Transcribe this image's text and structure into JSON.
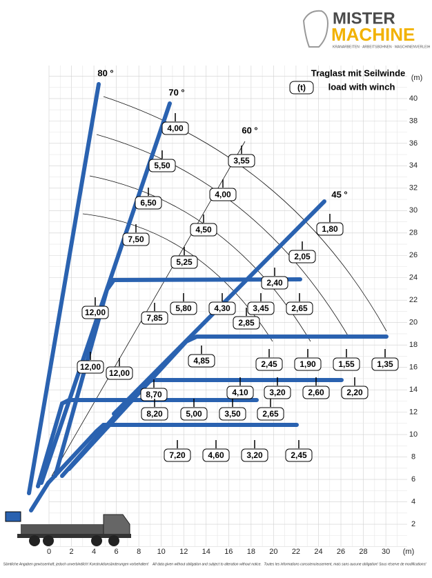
{
  "logo": {
    "line1": "MISTER",
    "line2": "MACHINE",
    "tagline": "KRANARBEITEN · ARBEITSBÜHNEN · MASCHINENVERLEIH"
  },
  "title": {
    "line1": "Traglast mit Seilwinde",
    "line2": "load with winch",
    "unit": "(t)"
  },
  "x_axis": {
    "unit": "(m)",
    "ticks": [
      0,
      2,
      4,
      6,
      8,
      10,
      12,
      14,
      16,
      18,
      20,
      22,
      24,
      26,
      28,
      30
    ]
  },
  "y_axis": {
    "unit": "(m)",
    "ticks": [
      2,
      4,
      6,
      8,
      10,
      12,
      14,
      16,
      18,
      20,
      22,
      24,
      26,
      28,
      30,
      32,
      34,
      36,
      38,
      40
    ]
  },
  "angles": [
    "80 °",
    "70 °",
    "60 °",
    "45 °"
  ],
  "loads": [
    "12,00",
    "4,00",
    "5,50",
    "6,50",
    "7,50",
    "12,00",
    "12,00",
    "3,55",
    "4,00",
    "4,50",
    "5,25",
    "7,85",
    "5,80",
    "4,30",
    "3,45",
    "2,65",
    "2,40",
    "1,80",
    "2,05",
    "2,85",
    "4,85",
    "2,45",
    "1,90",
    "1,55",
    "1,35",
    "8,70",
    "4,10",
    "3,20",
    "2,60",
    "2,20",
    "8,20",
    "5,00",
    "3,50",
    "2,65",
    "7,20",
    "4,60",
    "3,20",
    "2,45"
  ],
  "footer": [
    "Sämtliche Angaben gewissenhaft, jedoch unverbindlich! Konstruktionsänderungen vorbehalten!",
    "All data given without obligation and subject to alteration without notice.",
    "Toutes les informations consciencieusement, mais sans aucune obligation! Sous réserve de modifications!"
  ]
}
